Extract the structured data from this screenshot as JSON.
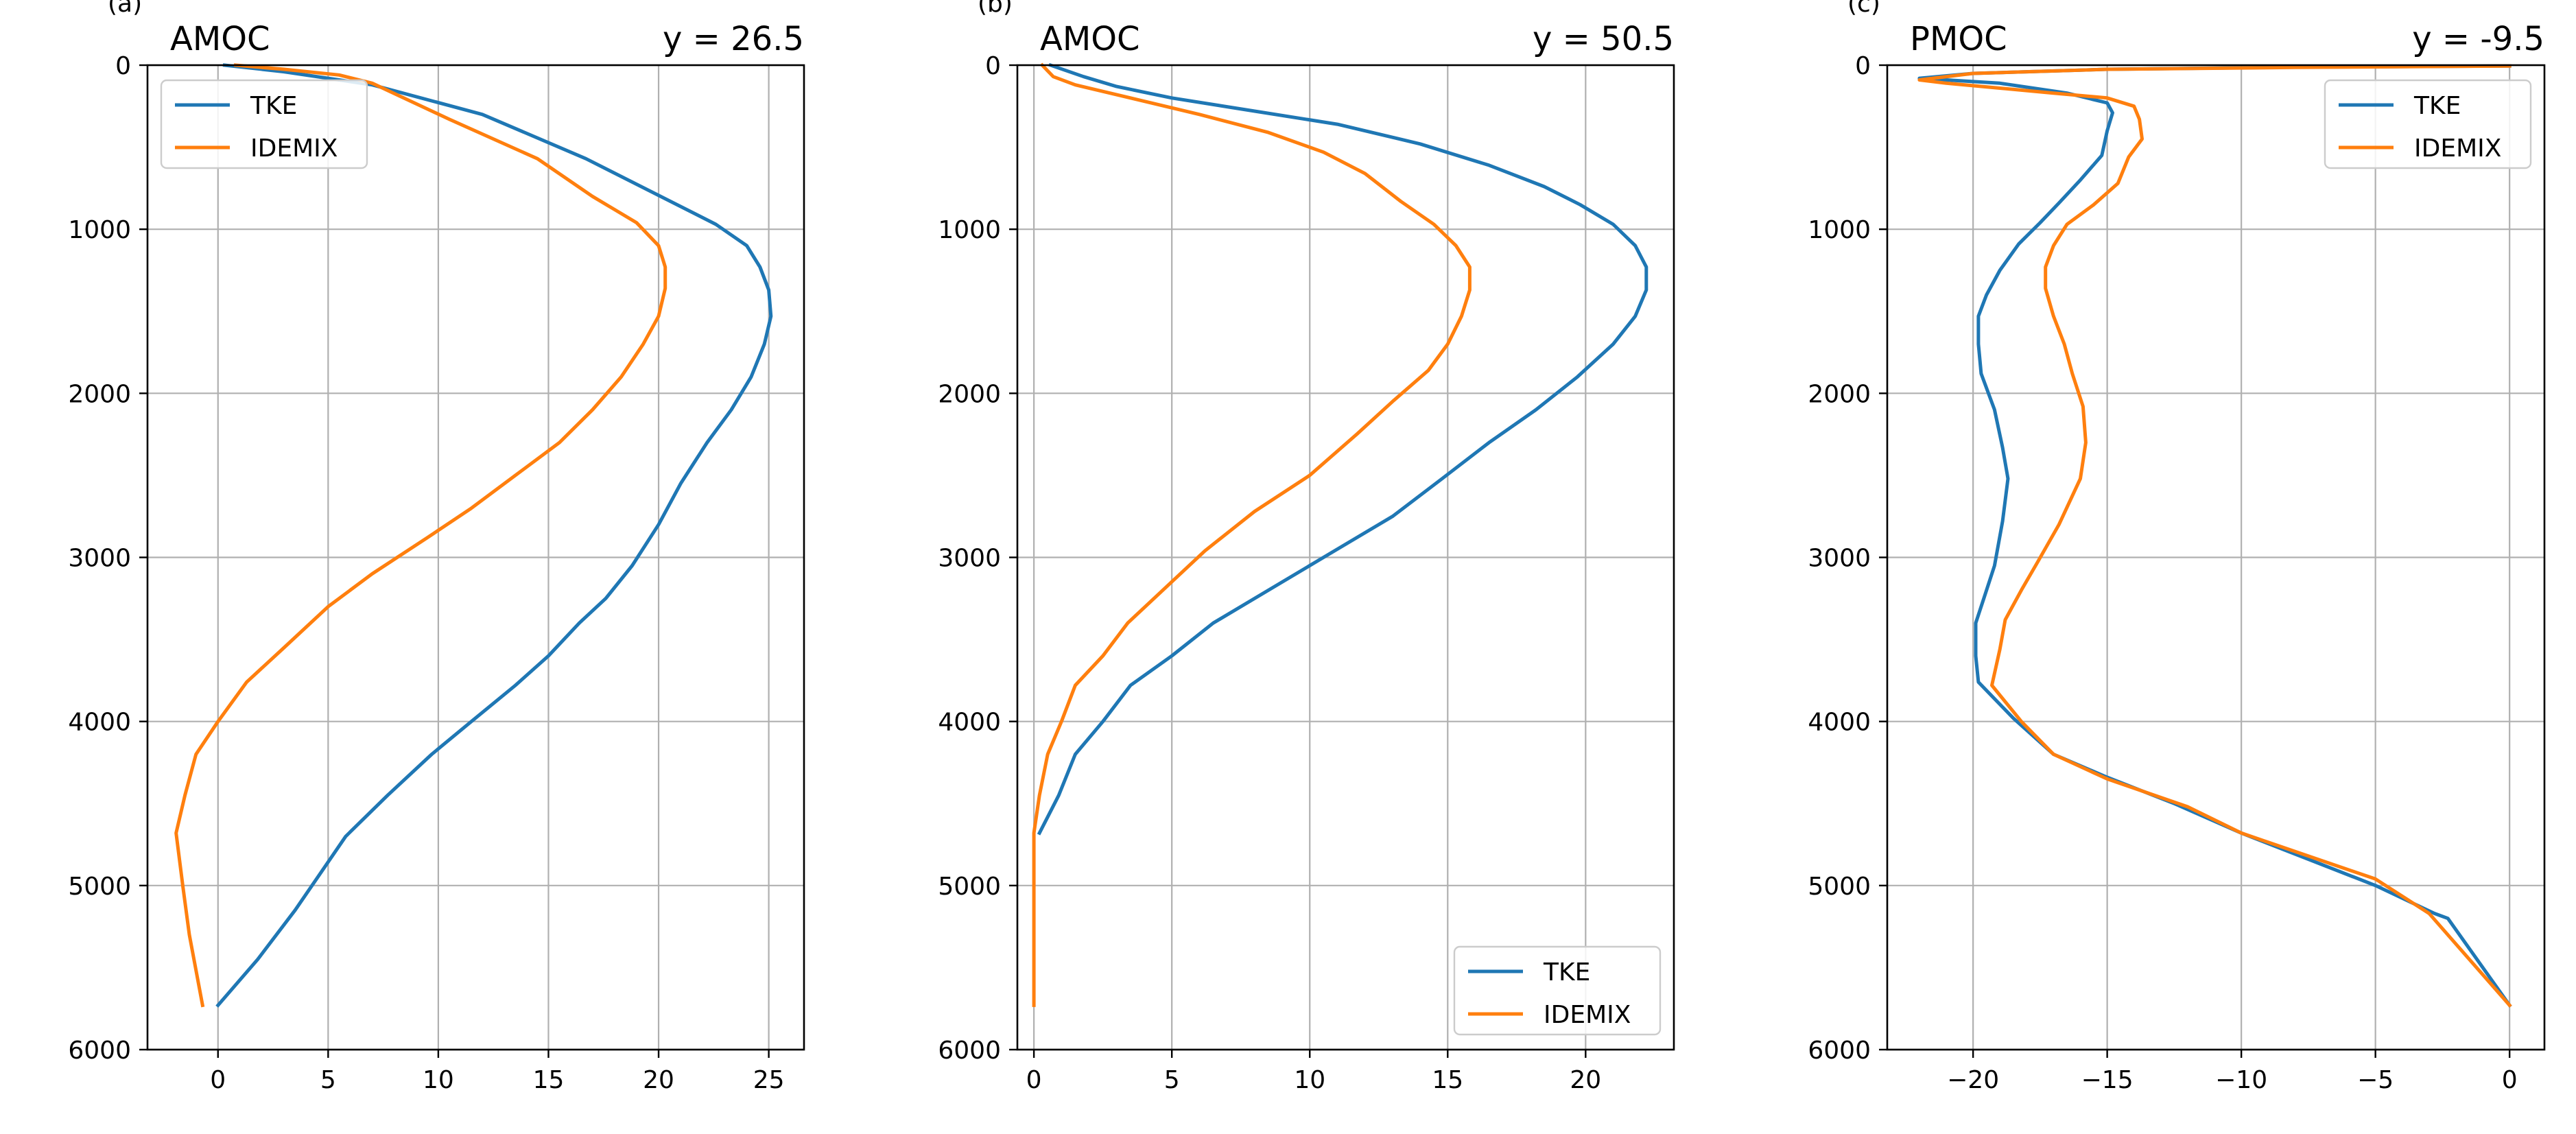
{
  "colors": {
    "tke": "#1f77b4",
    "idemix": "#ff7f0e",
    "grid": "#b0b0b0"
  },
  "chart_data": [
    {
      "type": "line",
      "panel_label": "(a)",
      "title": "AMOC",
      "subtitle": "y = 26.5",
      "xlim": [
        -3.2,
        26.6
      ],
      "ylim": [
        6000,
        0
      ],
      "y_inverted": true,
      "xticks": [
        0,
        5,
        10,
        15,
        20,
        25
      ],
      "yticks": [
        0,
        1000,
        2000,
        3000,
        4000,
        5000,
        6000
      ],
      "grid": true,
      "legend_position": "upper-left",
      "series": [
        {
          "name": "TKE",
          "color": "#1f77b4",
          "points": [
            [
              0.3,
              0
            ],
            [
              3,
              40
            ],
            [
              7,
              120
            ],
            [
              12,
              300
            ],
            [
              16.7,
              570
            ],
            [
              22.6,
              970
            ],
            [
              24,
              1100
            ],
            [
              24.6,
              1230
            ],
            [
              25,
              1370
            ],
            [
              25.1,
              1530
            ],
            [
              24.8,
              1700
            ],
            [
              24.2,
              1900
            ],
            [
              23.3,
              2100
            ],
            [
              22.2,
              2300
            ],
            [
              21,
              2550
            ],
            [
              20,
              2800
            ],
            [
              18.8,
              3050
            ],
            [
              17.6,
              3250
            ],
            [
              16.4,
              3400
            ],
            [
              15,
              3600
            ],
            [
              13.5,
              3780
            ],
            [
              11.5,
              4000
            ],
            [
              9.7,
              4200
            ],
            [
              7.7,
              4450
            ],
            [
              5.8,
              4700
            ],
            [
              3.5,
              5150
            ],
            [
              1.8,
              5450
            ],
            [
              0,
              5730
            ]
          ]
        },
        {
          "name": "IDEMIX",
          "color": "#ff7f0e",
          "points": [
            [
              0.8,
              0
            ],
            [
              3,
              25
            ],
            [
              5.5,
              60
            ],
            [
              7,
              110
            ],
            [
              10.5,
              330
            ],
            [
              14.5,
              570
            ],
            [
              17,
              800
            ],
            [
              19,
              960
            ],
            [
              20,
              1100
            ],
            [
              20.3,
              1230
            ],
            [
              20.3,
              1360
            ],
            [
              20,
              1530
            ],
            [
              19.3,
              1700
            ],
            [
              18.3,
              1900
            ],
            [
              17,
              2100
            ],
            [
              15.5,
              2300
            ],
            [
              13.5,
              2500
            ],
            [
              11.5,
              2700
            ],
            [
              9.5,
              2880
            ],
            [
              7,
              3100
            ],
            [
              5,
              3300
            ],
            [
              3,
              3550
            ],
            [
              1.3,
              3760
            ],
            [
              0,
              4000
            ],
            [
              -1,
              4200
            ],
            [
              -1.5,
              4450
            ],
            [
              -1.9,
              4680
            ],
            [
              -1.6,
              5000
            ],
            [
              -1.3,
              5300
            ],
            [
              -0.7,
              5730
            ]
          ]
        }
      ]
    },
    {
      "type": "line",
      "panel_label": "(b)",
      "title": "AMOC",
      "subtitle": "y = 50.5",
      "xlim": [
        -0.6,
        23.2
      ],
      "ylim": [
        6000,
        0
      ],
      "y_inverted": true,
      "xticks": [
        0,
        5,
        10,
        15,
        20
      ],
      "yticks": [
        0,
        1000,
        2000,
        3000,
        4000,
        5000,
        6000
      ],
      "grid": true,
      "legend_position": "lower-right",
      "series": [
        {
          "name": "TKE",
          "color": "#1f77b4",
          "points": [
            [
              0.6,
              0
            ],
            [
              1.8,
              70
            ],
            [
              3,
              130
            ],
            [
              5,
              200
            ],
            [
              8,
              280
            ],
            [
              11,
              360
            ],
            [
              14,
              480
            ],
            [
              16.5,
              610
            ],
            [
              18.5,
              740
            ],
            [
              19.8,
              850
            ],
            [
              21,
              970
            ],
            [
              21.8,
              1100
            ],
            [
              22.2,
              1230
            ],
            [
              22.2,
              1370
            ],
            [
              21.8,
              1530
            ],
            [
              21,
              1700
            ],
            [
              19.7,
              1900
            ],
            [
              18.2,
              2100
            ],
            [
              16.5,
              2300
            ],
            [
              14.8,
              2520
            ],
            [
              13,
              2750
            ],
            [
              11,
              2950
            ],
            [
              9,
              3150
            ],
            [
              6.5,
              3400
            ],
            [
              5,
              3600
            ],
            [
              3.5,
              3780
            ],
            [
              2.5,
              4000
            ],
            [
              1.5,
              4200
            ],
            [
              0.9,
              4450
            ],
            [
              0.2,
              4680
            ]
          ]
        },
        {
          "name": "IDEMIX",
          "color": "#ff7f0e",
          "points": [
            [
              0.3,
              0
            ],
            [
              0.7,
              70
            ],
            [
              1.5,
              120
            ],
            [
              3.5,
              200
            ],
            [
              6,
              300
            ],
            [
              8.5,
              410
            ],
            [
              10.5,
              530
            ],
            [
              12,
              660
            ],
            [
              13.3,
              830
            ],
            [
              14.5,
              970
            ],
            [
              15.3,
              1100
            ],
            [
              15.8,
              1230
            ],
            [
              15.8,
              1370
            ],
            [
              15.5,
              1530
            ],
            [
              15,
              1700
            ],
            [
              14.3,
              1860
            ],
            [
              13,
              2050
            ],
            [
              11.7,
              2250
            ],
            [
              10,
              2500
            ],
            [
              8,
              2720
            ],
            [
              6.2,
              2960
            ],
            [
              4.8,
              3180
            ],
            [
              3.4,
              3400
            ],
            [
              2.5,
              3600
            ],
            [
              1.5,
              3780
            ],
            [
              1,
              4000
            ],
            [
              0.5,
              4200
            ],
            [
              0.2,
              4450
            ],
            [
              0,
              4680
            ],
            [
              0,
              5000
            ],
            [
              0,
              5400
            ],
            [
              0,
              5730
            ]
          ]
        }
      ]
    },
    {
      "type": "line",
      "panel_label": "(c)",
      "title": "PMOC",
      "subtitle": "y = -9.5",
      "xlim": [
        -23.2,
        1.3
      ],
      "ylim": [
        6000,
        0
      ],
      "y_inverted": true,
      "xticks": [
        -20,
        -15,
        -10,
        -5,
        0
      ],
      "xtick_labels": [
        "−20",
        "−15",
        "−10",
        "−5",
        "0"
      ],
      "yticks": [
        0,
        1000,
        2000,
        3000,
        4000,
        5000,
        6000
      ],
      "grid": true,
      "legend_position": "upper-right",
      "series": [
        {
          "name": "TKE",
          "color": "#1f77b4",
          "points": [
            [
              0,
              5
            ],
            [
              -8,
              12
            ],
            [
              -15,
              25
            ],
            [
              -20,
              50
            ],
            [
              -22,
              80
            ],
            [
              -21,
              90
            ],
            [
              -19,
              110
            ],
            [
              -16.5,
              170
            ],
            [
              -15,
              230
            ],
            [
              -14.8,
              290
            ],
            [
              -15,
              400
            ],
            [
              -15.2,
              550
            ],
            [
              -16,
              700
            ],
            [
              -16.8,
              840
            ],
            [
              -17.5,
              960
            ],
            [
              -18.3,
              1090
            ],
            [
              -19,
              1250
            ],
            [
              -19.5,
              1400
            ],
            [
              -19.8,
              1530
            ],
            [
              -19.8,
              1700
            ],
            [
              -19.7,
              1880
            ],
            [
              -19.2,
              2100
            ],
            [
              -18.9,
              2330
            ],
            [
              -18.7,
              2520
            ],
            [
              -18.9,
              2780
            ],
            [
              -19.2,
              3050
            ],
            [
              -19.6,
              3250
            ],
            [
              -19.9,
              3400
            ],
            [
              -19.9,
              3600
            ],
            [
              -19.8,
              3760
            ],
            [
              -18.5,
              3980
            ],
            [
              -17,
              4200
            ],
            [
              -15,
              4340
            ],
            [
              -12.5,
              4500
            ],
            [
              -10,
              4680
            ],
            [
              -5,
              5000
            ],
            [
              -2.8,
              5170
            ],
            [
              -2.3,
              5200
            ],
            [
              0,
              5730
            ]
          ]
        },
        {
          "name": "IDEMIX",
          "color": "#ff7f0e",
          "points": [
            [
              0,
              5
            ],
            [
              -8,
              14
            ],
            [
              -15,
              25
            ],
            [
              -20,
              50
            ],
            [
              -22,
              90
            ],
            [
              -21,
              110
            ],
            [
              -19,
              140
            ],
            [
              -17,
              170
            ],
            [
              -15,
              200
            ],
            [
              -14,
              250
            ],
            [
              -13.8,
              330
            ],
            [
              -13.7,
              450
            ],
            [
              -14.2,
              560
            ],
            [
              -14.6,
              720
            ],
            [
              -15.5,
              850
            ],
            [
              -16.5,
              970
            ],
            [
              -17,
              1100
            ],
            [
              -17.3,
              1230
            ],
            [
              -17.3,
              1360
            ],
            [
              -17,
              1530
            ],
            [
              -16.6,
              1700
            ],
            [
              -16.3,
              1880
            ],
            [
              -15.9,
              2080
            ],
            [
              -15.8,
              2300
            ],
            [
              -16,
              2520
            ],
            [
              -16.8,
              2800
            ],
            [
              -17.6,
              3030
            ],
            [
              -18.2,
              3200
            ],
            [
              -18.8,
              3380
            ],
            [
              -19,
              3560
            ],
            [
              -19.3,
              3780
            ],
            [
              -18.2,
              4000
            ],
            [
              -17,
              4200
            ],
            [
              -15,
              4350
            ],
            [
              -12,
              4520
            ],
            [
              -10,
              4680
            ],
            [
              -5,
              4960
            ],
            [
              -3,
              5170
            ],
            [
              0,
              5730
            ]
          ]
        }
      ]
    }
  ]
}
